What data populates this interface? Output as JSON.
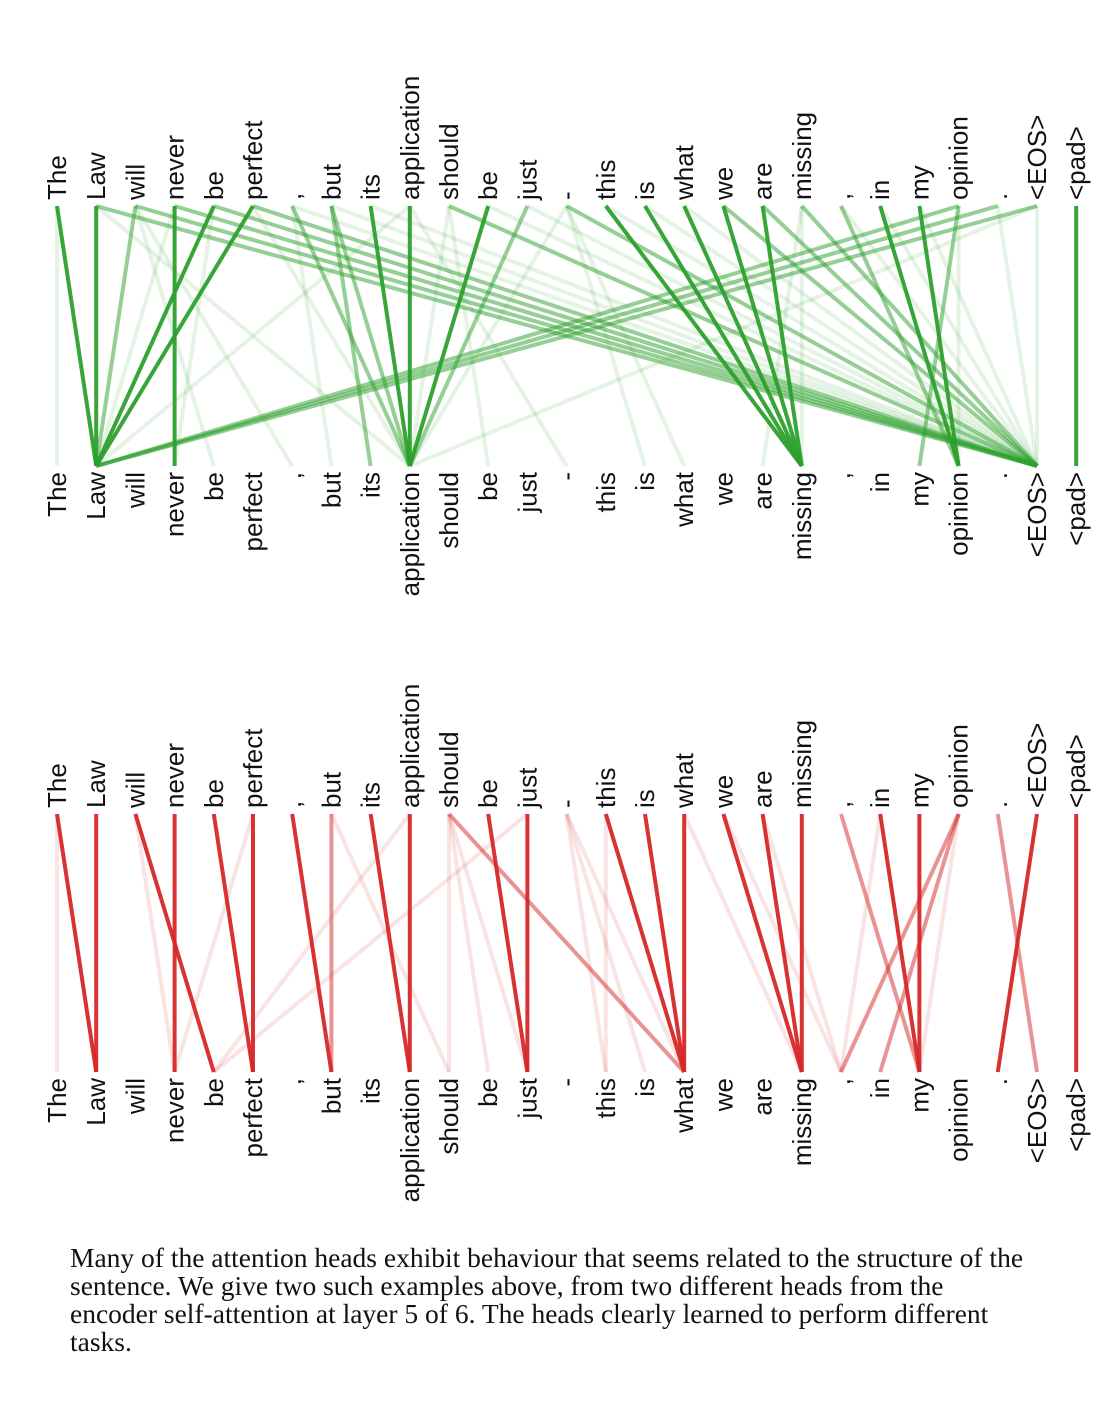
{
  "tokens": [
    "The",
    "Law",
    "will",
    "never",
    "be",
    "perfect",
    ",",
    "but",
    "its",
    "application",
    "should",
    "be",
    "just",
    "-",
    "this",
    "is",
    "what",
    "we",
    "are",
    "missing",
    ",",
    "in",
    "my",
    "opinion",
    ".",
    "<EOS>",
    "<pad>"
  ],
  "panels": [
    {
      "color": "#2ca02c",
      "strong": [
        [
          0,
          1
        ],
        [
          1,
          1
        ],
        [
          3,
          3
        ],
        [
          4,
          1
        ],
        [
          5,
          1
        ],
        [
          8,
          9
        ],
        [
          9,
          9
        ],
        [
          11,
          9
        ],
        [
          14,
          19
        ],
        [
          15,
          19
        ],
        [
          16,
          19
        ],
        [
          17,
          19
        ],
        [
          18,
          19
        ],
        [
          21,
          23
        ],
        [
          22,
          23
        ],
        [
          26,
          26
        ]
      ],
      "medium": [
        [
          2,
          1
        ],
        [
          6,
          9
        ],
        [
          7,
          9
        ],
        [
          7,
          8
        ],
        [
          10,
          25
        ],
        [
          12,
          9
        ],
        [
          17,
          25
        ],
        [
          18,
          25
        ],
        [
          19,
          25
        ],
        [
          20,
          23
        ],
        [
          23,
          22
        ],
        [
          23,
          1
        ],
        [
          24,
          1
        ],
        [
          25,
          1
        ],
        [
          5,
          25
        ],
        [
          4,
          25
        ],
        [
          3,
          25
        ],
        [
          2,
          25
        ],
        [
          1,
          25
        ],
        [
          13,
          25
        ]
      ],
      "faint": [
        [
          0,
          0
        ],
        [
          1,
          9
        ],
        [
          2,
          4
        ],
        [
          2,
          6
        ],
        [
          3,
          1
        ],
        [
          4,
          3
        ],
        [
          5,
          9
        ],
        [
          6,
          7
        ],
        [
          6,
          25
        ],
        [
          7,
          25
        ],
        [
          8,
          25
        ],
        [
          9,
          1
        ],
        [
          9,
          13
        ],
        [
          10,
          9
        ],
        [
          10,
          11
        ],
        [
          11,
          25
        ],
        [
          12,
          25
        ],
        [
          13,
          16
        ],
        [
          13,
          15
        ],
        [
          13,
          9
        ],
        [
          14,
          25
        ],
        [
          15,
          25
        ],
        [
          16,
          25
        ],
        [
          19,
          19
        ],
        [
          19,
          18
        ],
        [
          20,
          25
        ],
        [
          21,
          25
        ],
        [
          22,
          25
        ],
        [
          23,
          23
        ],
        [
          24,
          25
        ],
        [
          25,
          25
        ],
        [
          25,
          9
        ]
      ]
    },
    {
      "color": "#d62728",
      "strong": [
        [
          0,
          1
        ],
        [
          1,
          1
        ],
        [
          2,
          4
        ],
        [
          3,
          3
        ],
        [
          4,
          5
        ],
        [
          5,
          5
        ],
        [
          6,
          7
        ],
        [
          8,
          9
        ],
        [
          9,
          9
        ],
        [
          11,
          12
        ],
        [
          12,
          12
        ],
        [
          14,
          16
        ],
        [
          15,
          16
        ],
        [
          16,
          16
        ],
        [
          17,
          19
        ],
        [
          18,
          19
        ],
        [
          19,
          19
        ],
        [
          21,
          22
        ],
        [
          22,
          22
        ],
        [
          25,
          24
        ],
        [
          26,
          26
        ]
      ],
      "medium": [
        [
          7,
          7
        ],
        [
          10,
          16
        ],
        [
          20,
          22
        ],
        [
          24,
          25
        ],
        [
          23,
          21
        ],
        [
          23,
          20
        ]
      ],
      "faint": [
        [
          7,
          10
        ],
        [
          10,
          10
        ],
        [
          10,
          11
        ],
        [
          13,
          14
        ],
        [
          13,
          16
        ],
        [
          13,
          15
        ],
        [
          23,
          22
        ],
        [
          0,
          0
        ],
        [
          2,
          3
        ],
        [
          9,
          4
        ],
        [
          12,
          4
        ],
        [
          17,
          20
        ],
        [
          21,
          20
        ],
        [
          18,
          20
        ],
        [
          16,
          19
        ],
        [
          5,
          3
        ],
        [
          14,
          14
        ],
        [
          10,
          12
        ]
      ]
    }
  ],
  "caption": "Many of the attention heads exhibit behaviour that seems related to the structure of the sentence. We give two such examples above, from two different heads from the encoder self-attention at layer 5 of 6. The heads clearly learned to perform different tasks."
}
